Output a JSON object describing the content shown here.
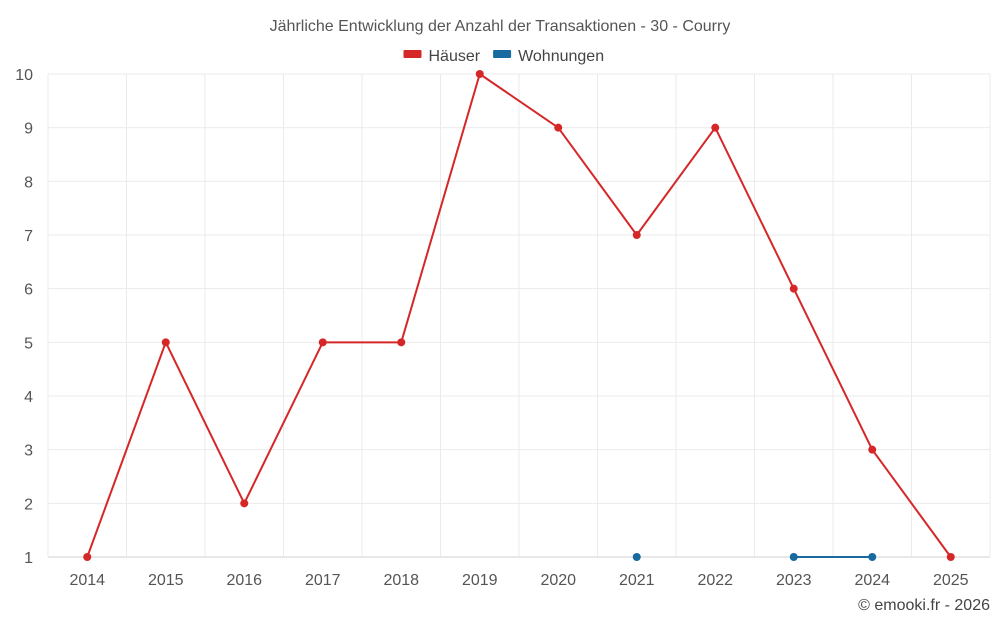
{
  "chart_data": {
    "type": "line",
    "title": "Jährliche Entwicklung der Anzahl der Transaktionen - 30 - Courry",
    "categories": [
      "2014",
      "2015",
      "2016",
      "2017",
      "2018",
      "2019",
      "2020",
      "2021",
      "2022",
      "2023",
      "2024",
      "2025"
    ],
    "series": [
      {
        "name": "Häuser",
        "color": "#d62728",
        "values": [
          1,
          5,
          2,
          5,
          5,
          10,
          9,
          7,
          9,
          6,
          3,
          1
        ]
      },
      {
        "name": "Wohnungen",
        "color": "#1a6aa2",
        "values": [
          null,
          null,
          null,
          null,
          null,
          null,
          null,
          1,
          null,
          1,
          1,
          null
        ]
      }
    ],
    "ylim": [
      1,
      10
    ],
    "yticks": [
      1,
      2,
      3,
      4,
      5,
      6,
      7,
      8,
      9,
      10
    ],
    "xlabel": "",
    "ylabel": "",
    "legend": "top-center",
    "grid": true
  },
  "credit": "© emooki.fr - 2026"
}
